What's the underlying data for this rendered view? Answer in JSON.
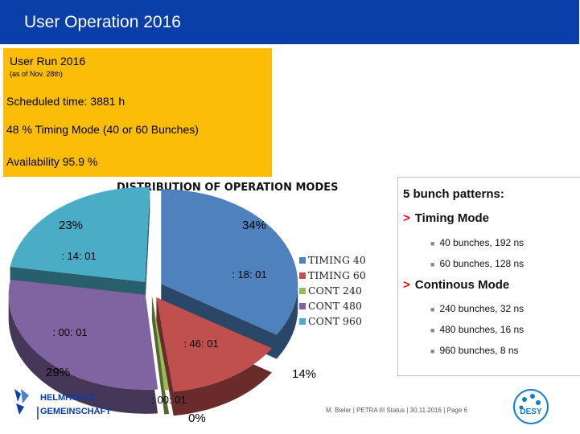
{
  "header": {
    "title": "User Operation 2016"
  },
  "info_box": {
    "title": "User Run 2016",
    "subtitle": "(as of Nov. 28th)",
    "scheduled": "Scheduled  time:   3881 h",
    "timing_mode": "48 % Timing Mode     (40 or 60 Bunches)",
    "availability": "Availability 95.9 %"
  },
  "chart_data": {
    "type": "pie",
    "title": "DISTRIBUTION OF OPERATION MODES",
    "categories": [
      "TIMING 40",
      "TIMING 60",
      "CONT 240",
      "CONT 480",
      "CONT 960"
    ],
    "values": [
      34,
      14,
      0,
      29,
      23
    ],
    "percent_labels": [
      "34%",
      "14%",
      "0%",
      "29%",
      "23%"
    ],
    "time_labels": [
      ": 18: 01",
      ": 46: 01",
      ": 00: 01",
      ": 00: 01",
      ": 14: 01"
    ],
    "colors": [
      "#4f81bd",
      "#c0504d",
      "#9bbb59",
      "#8064a2",
      "#4bacc6"
    ],
    "legend_position": "right"
  },
  "patterns": {
    "title": "5 bunch patterns:",
    "timing_mode": "Timing Mode",
    "timing_items": [
      "40 bunches, 192 ns",
      "60 bunches, 128 ns"
    ],
    "continous_mode": "Continous Mode",
    "continous_items": [
      "240 bunches, 32 ns",
      "480 bunches, 16 ns",
      "960 bunches,   8 ns"
    ]
  },
  "footer": {
    "citation": "M. Bieler  |  PETRA III Status | 30.11.2016  |  Page 6",
    "logo_left": "HELMHOLTZ GEMEINSCHAFT",
    "logo_right": "DESY"
  }
}
